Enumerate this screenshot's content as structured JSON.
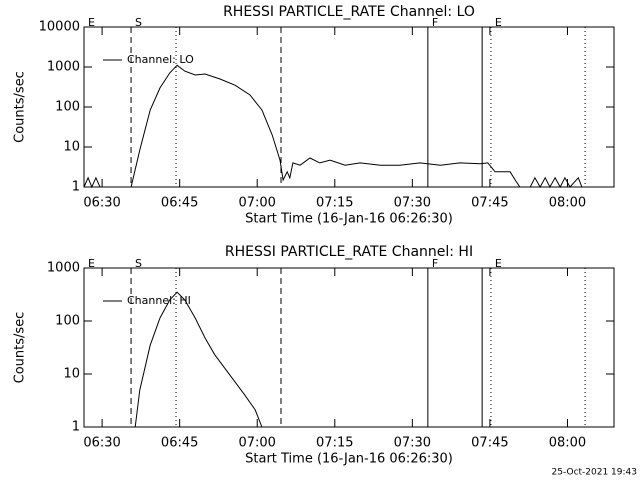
{
  "chart_data": [
    {
      "type": "line",
      "title": "RHESSI PARTICLE_RATE Channel: LO",
      "x_label": "Start Time (16-Jan-16 06:26:30)",
      "y_label": "Counts/sec",
      "log_y": true,
      "legend": "top-left",
      "xlim": [
        386.5,
        489
      ],
      "ylim": [
        1,
        10000
      ],
      "yticks": [
        1,
        10,
        100,
        1000,
        10000
      ],
      "xticks": [
        {
          "value": 390,
          "label": "06:30"
        },
        {
          "value": 405,
          "label": "06:45"
        },
        {
          "value": 420,
          "label": "07:00"
        },
        {
          "value": 435,
          "label": "07:15"
        },
        {
          "value": 450,
          "label": "07:30"
        },
        {
          "value": 465,
          "label": "07:45"
        },
        {
          "value": 480,
          "label": "08:00"
        }
      ],
      "markers": [
        {
          "x": 395.6,
          "style": "dashed"
        },
        {
          "x": 424.6,
          "style": "dashed"
        },
        {
          "x": 404.3,
          "style": "dotted"
        },
        {
          "x": 465.2,
          "style": "dotted"
        },
        {
          "x": 483.4,
          "style": "dotted"
        },
        {
          "x": 453.0,
          "style": "solid"
        },
        {
          "x": 463.5,
          "style": "solid"
        }
      ],
      "annotations": [
        {
          "text": "E",
          "x": 386.5
        },
        {
          "text": "S",
          "x": 395.6
        },
        {
          "text": "F",
          "x": 453.0
        },
        {
          "text": "E",
          "x": 465.2
        }
      ],
      "series": [
        {
          "name": "Channel: LO",
          "color": "#000000",
          "x": [
            386.5,
            387.3,
            388.0,
            388.8,
            389.6,
            395.6,
            397.3,
            399.3,
            401.2,
            403.1,
            404.5,
            406.0,
            408.0,
            409.9,
            412.8,
            415.7,
            418.6,
            420.9,
            422.9,
            424.4,
            425.0,
            425.8,
            426.3,
            426.9,
            428.3,
            430.2,
            432.1,
            434.1,
            437.0,
            439.9,
            443.8,
            447.6,
            451.5,
            455.4,
            459.2,
            463.1,
            464.6,
            466.0,
            468.9,
            469.9,
            470.8,
            472.8,
            473.7,
            474.7,
            475.7,
            476.6,
            477.6,
            478.6,
            479.5,
            480.5,
            482.1,
            482.8,
            489
          ],
          "values": [
            1,
            1.7,
            1,
            1.7,
            1,
            1,
            8.4,
            84,
            300,
            710,
            1100,
            790,
            630,
            670,
            500,
            350,
            200,
            84,
            20,
            4.7,
            1.5,
            2.4,
            1.7,
            4.0,
            3.5,
            5.3,
            4.0,
            4.7,
            3.5,
            4.0,
            3.5,
            3.5,
            4.0,
            3.5,
            4.0,
            3.8,
            4.0,
            2.4,
            2.4,
            1.5,
            1,
            1,
            1.7,
            1,
            1.7,
            1,
            1.7,
            1,
            1.7,
            1,
            1.7,
            1,
            1
          ]
        }
      ]
    },
    {
      "type": "line",
      "title": "RHESSI PARTICLE_RATE Channel: HI",
      "x_label": "Start Time (16-Jan-16 06:26:30)",
      "y_label": "Counts/sec",
      "log_y": true,
      "legend": "top-left",
      "xlim": [
        386.5,
        489
      ],
      "ylim": [
        1,
        1000
      ],
      "yticks": [
        1,
        10,
        100,
        1000
      ],
      "xticks": [
        {
          "value": 390,
          "label": "06:30"
        },
        {
          "value": 405,
          "label": "06:45"
        },
        {
          "value": 420,
          "label": "07:00"
        },
        {
          "value": 435,
          "label": "07:15"
        },
        {
          "value": 450,
          "label": "07:30"
        },
        {
          "value": 465,
          "label": "07:45"
        },
        {
          "value": 480,
          "label": "08:00"
        }
      ],
      "markers": [
        {
          "x": 395.6,
          "style": "dashed"
        },
        {
          "x": 424.6,
          "style": "dashed"
        },
        {
          "x": 404.3,
          "style": "dotted"
        },
        {
          "x": 465.2,
          "style": "dotted"
        },
        {
          "x": 483.4,
          "style": "dotted"
        },
        {
          "x": 453.0,
          "style": "solid"
        },
        {
          "x": 463.5,
          "style": "solid"
        }
      ],
      "annotations": [
        {
          "text": "E",
          "x": 386.5
        },
        {
          "text": "S",
          "x": 395.6
        },
        {
          "text": "F",
          "x": 453.0
        },
        {
          "text": "E",
          "x": 465.2
        }
      ],
      "series": [
        {
          "name": "Channel: HI",
          "color": "#000000",
          "x": [
            396.4,
            397.3,
            399.3,
            401.2,
            403.1,
            404.5,
            406.0,
            408.0,
            409.9,
            411.8,
            414.7,
            417.6,
            419.6,
            420.9
          ],
          "values": [
            1,
            5,
            35,
            114,
            250,
            350,
            250,
            114,
            48,
            23,
            9.6,
            4,
            2.1,
            1
          ]
        }
      ]
    }
  ],
  "footer": "25-Oct-2021 19:43"
}
